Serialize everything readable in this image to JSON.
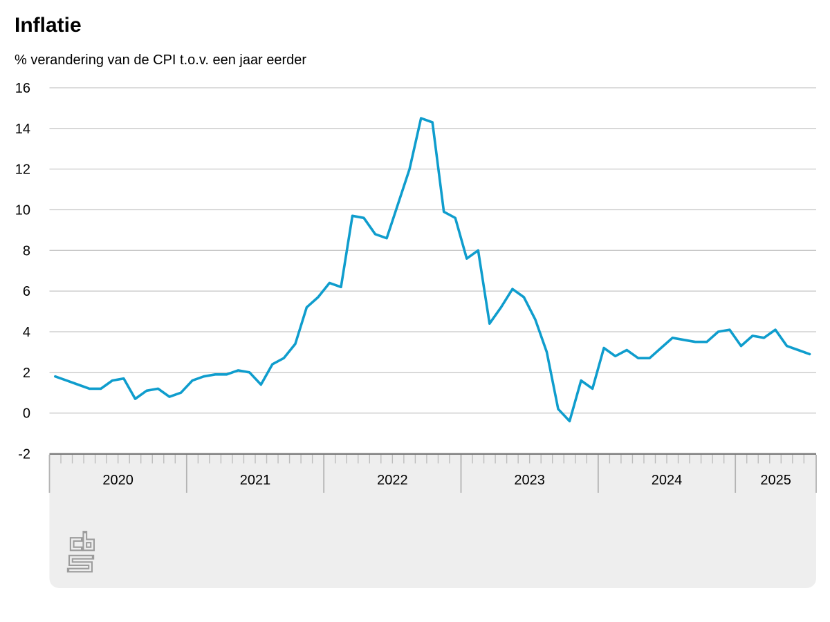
{
  "header": {
    "title": "Inflatie",
    "subtitle": "% verandering van de CPI t.o.v. een jaar eerder"
  },
  "chart_data": {
    "type": "line",
    "title": "Inflatie",
    "subtitle": "% verandering van de CPI t.o.v. een jaar eerder",
    "xlabel": "",
    "ylabel": "% verandering CPI t.o.v. een jaar eerder",
    "ylim": [
      -2,
      16
    ],
    "y_ticks": [
      16,
      14,
      12,
      10,
      8,
      6,
      4,
      2,
      0,
      -2
    ],
    "grid": "horizontal",
    "legend_position": "none",
    "x_start": "2020-01",
    "x_end": "2025-07",
    "x_frequency": "monthly",
    "x_year_labels": [
      "2020",
      "2021",
      "2022",
      "2023",
      "2024",
      "2025"
    ],
    "series": [
      {
        "name": "Inflatie (CPI)",
        "color": "#0f9dcd",
        "values": [
          1.8,
          1.6,
          1.4,
          1.2,
          1.2,
          1.6,
          1.7,
          0.7,
          1.1,
          1.2,
          0.8,
          1.0,
          1.6,
          1.8,
          1.9,
          1.9,
          2.1,
          2.0,
          1.4,
          2.4,
          2.7,
          3.4,
          5.2,
          5.7,
          6.4,
          6.2,
          9.7,
          9.6,
          8.8,
          8.6,
          10.3,
          12.0,
          14.5,
          14.3,
          9.9,
          9.6,
          7.6,
          8.0,
          4.4,
          5.2,
          6.1,
          5.7,
          4.6,
          3.0,
          0.2,
          -0.4,
          1.6,
          1.2,
          3.2,
          2.8,
          3.1,
          2.7,
          2.7,
          3.2,
          3.7,
          3.6,
          3.5,
          3.5,
          4.0,
          4.1,
          3.3,
          3.8,
          3.7,
          4.1,
          3.3,
          3.1,
          2.9
        ]
      }
    ],
    "footer_logo": "cbs-logo"
  },
  "colors": {
    "line": "#0f9dcd",
    "gridline": "#c8c8c8",
    "axis_band_fill": "#eeeeee",
    "axis_line": "#7a7a7a",
    "month_tick": "#bdbdbd",
    "year_tick": "#b3b3b3",
    "logo": "#9c9c9c",
    "text": "#000000"
  }
}
